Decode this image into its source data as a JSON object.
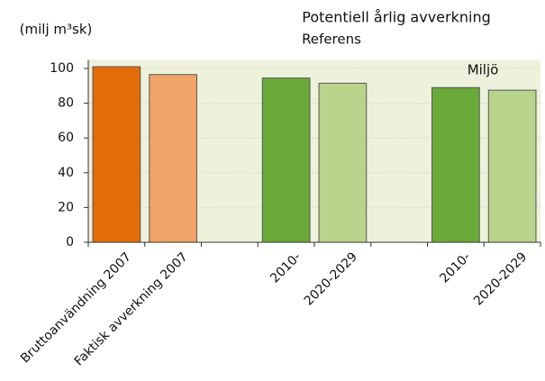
{
  "chart_data": {
    "type": "bar",
    "title": "Potentiell årlig avverkning",
    "y_label": "(milj m³sk)",
    "annotations": [
      "Referens",
      "Miljö"
    ],
    "categories": [
      "Bruttoanvändning 2007",
      "Faktisk avverkning 2007",
      null,
      "2010-",
      "2020-2029",
      null,
      "2010-",
      "2020-2029"
    ],
    "values": [
      101,
      96.5,
      null,
      94.5,
      91.5,
      null,
      89,
      87.5
    ],
    "colors": [
      "#e36c09",
      "#f0a468",
      null,
      "#6aaa3a",
      "#b8d48a",
      null,
      "#6aaa3a",
      "#b8d48a"
    ],
    "ylim": [
      0,
      105
    ],
    "yticks": [
      0,
      20,
      40,
      60,
      80,
      100
    ],
    "grid": true
  }
}
